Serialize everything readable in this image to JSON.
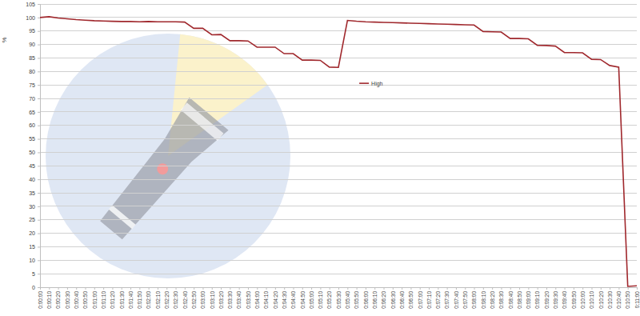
{
  "chart_data": {
    "type": "line",
    "y_label": "%",
    "categories": [
      "0:00:00",
      "0:00:10",
      "0:00:20",
      "0:00:30",
      "0:00:40",
      "0:00:50",
      "0:01:00",
      "0:01:10",
      "0:01:20",
      "0:01:30",
      "0:01:40",
      "0:01:50",
      "0:02:00",
      "0:02:10",
      "0:02:20",
      "0:02:30",
      "0:02:40",
      "0:02:50",
      "0:03:00",
      "0:03:10",
      "0:03:20",
      "0:03:30",
      "0:03:40",
      "0:03:50",
      "0:04:00",
      "0:04:10",
      "0:04:20",
      "0:04:30",
      "0:04:40",
      "0:04:50",
      "0:05:00",
      "0:05:10",
      "0:05:20",
      "0:05:30",
      "0:05:40",
      "0:05:50",
      "0:06:00",
      "0:06:10",
      "0:06:20",
      "0:06:30",
      "0:06:40",
      "0:06:50",
      "0:07:00",
      "0:07:10",
      "0:07:20",
      "0:07:30",
      "0:07:40",
      "0:07:50",
      "0:08:00",
      "0:08:10",
      "0:08:20",
      "0:08:30",
      "0:08:40",
      "0:08:50",
      "0:09:00",
      "0:09:10",
      "0:09:20",
      "0:09:30",
      "0:09:40",
      "0:09:50",
      "0:10:00",
      "0:10:10",
      "0:10:20",
      "0:10:30",
      "0:10:40",
      "0:10:50",
      "0:11:00"
    ],
    "series": [
      {
        "name": "High",
        "color": "#a0282d",
        "values": [
          100,
          100.3,
          99.8,
          99.5,
          99.2,
          99,
          98.8,
          98.7,
          98.6,
          98.5,
          98.5,
          98.4,
          98.5,
          98.4,
          98.4,
          98.4,
          98.3,
          96,
          96,
          93.6,
          93.7,
          91.4,
          91.4,
          91.3,
          89,
          89,
          89,
          86.6,
          86.6,
          84.2,
          84.2,
          84.1,
          81.6,
          81.5,
          98.9,
          98.6,
          98.4,
          98.3,
          98.2,
          98.1,
          98,
          97.9,
          97.8,
          97.7,
          97.6,
          97.5,
          97.4,
          97.3,
          97.2,
          94.8,
          94.7,
          94.6,
          92.2,
          92.2,
          92.1,
          89.7,
          89.6,
          89.4,
          87,
          87,
          86.9,
          84.5,
          84.4,
          82.2,
          81.6,
          0.3,
          0.5
        ]
      }
    ],
    "ylim": [
      0,
      105
    ],
    "yticks": [
      0,
      5,
      10,
      15,
      20,
      25,
      30,
      35,
      40,
      45,
      50,
      55,
      60,
      65,
      70,
      75,
      80,
      85,
      90,
      95,
      100,
      105
    ],
    "grid": true,
    "legend": "center"
  }
}
